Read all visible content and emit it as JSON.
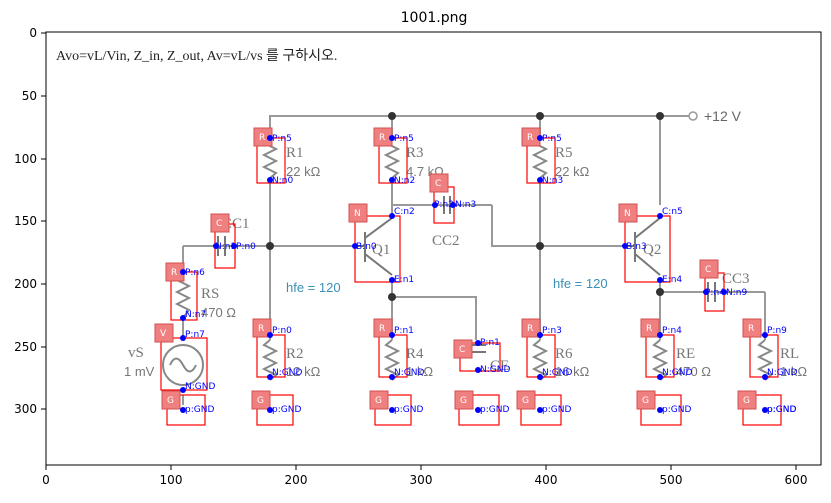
{
  "figure": {
    "title": "1001.png",
    "x_ticks": [
      "0",
      "100",
      "200",
      "300",
      "400",
      "500",
      "600"
    ],
    "y_ticks": [
      "0",
      "50",
      "100",
      "150",
      "200",
      "250",
      "300"
    ]
  },
  "question": "Avo=vL/Vin, Z_in, Z_out, Av=vL/vs 를 구하시오.",
  "supply": "+12 V",
  "hfe_1": "hfe = 120",
  "hfe_2": "hfe = 120",
  "source": {
    "name": "vS",
    "value": "1 mV"
  },
  "components": [
    {
      "name": "RS",
      "value": "470 Ω"
    },
    {
      "name": "R1",
      "value": "22 kΩ"
    },
    {
      "name": "R2",
      "value": "12 kΩ"
    },
    {
      "name": "R3",
      "value": "4.7 kΩ"
    },
    {
      "name": "R4",
      "value": "1 kΩ"
    },
    {
      "name": "R5",
      "value": "22 kΩ"
    },
    {
      "name": "R6",
      "value": "16 kΩ"
    },
    {
      "name": "RE",
      "value": "470 Ω"
    },
    {
      "name": "RL",
      "value": "1 kΩ"
    },
    {
      "name": "CC1",
      "value": ""
    },
    {
      "name": "CC2",
      "value": ""
    },
    {
      "name": "CC3",
      "value": ""
    },
    {
      "name": "CE",
      "value": ""
    },
    {
      "name": "Q1",
      "value": ""
    },
    {
      "name": "Q2",
      "value": ""
    }
  ],
  "annotations": {
    "tags": [
      "R",
      "R",
      "R",
      "R",
      "R",
      "R",
      "R",
      "R",
      "R",
      "V",
      "C",
      "C",
      "C",
      "C",
      "N",
      "N",
      "G",
      "G",
      "G",
      "G",
      "G",
      "G",
      "G",
      "G"
    ],
    "pins": [
      "P:n5",
      "N:n0",
      "P:n5",
      "N:n2",
      "P:n5",
      "N:n3",
      "P:n6",
      "N:n7",
      "P:n7",
      "N:GND",
      "P:n0",
      "N:GND",
      "P:n1",
      "N:GND",
      "P:n3",
      "N:GND",
      "P:n4",
      "N:GND",
      "P:n9",
      "N:GND",
      "N:n1",
      "P:n0",
      "P:n2",
      "N:n3",
      "C:n2",
      "B:n0",
      "E:n1",
      "C:n5",
      "B:n3",
      "E:n4",
      "P:n4",
      "N:n9",
      "P:n1",
      "N:GND",
      "p:GND",
      "p:GND",
      "p:GND",
      "p:GND",
      "p:GND",
      "p:GND",
      "p:GND",
      "p:GND"
    ],
    "color_box": "#ff0000",
    "color_tag": "#f08080",
    "color_pin": "#0000ff"
  }
}
